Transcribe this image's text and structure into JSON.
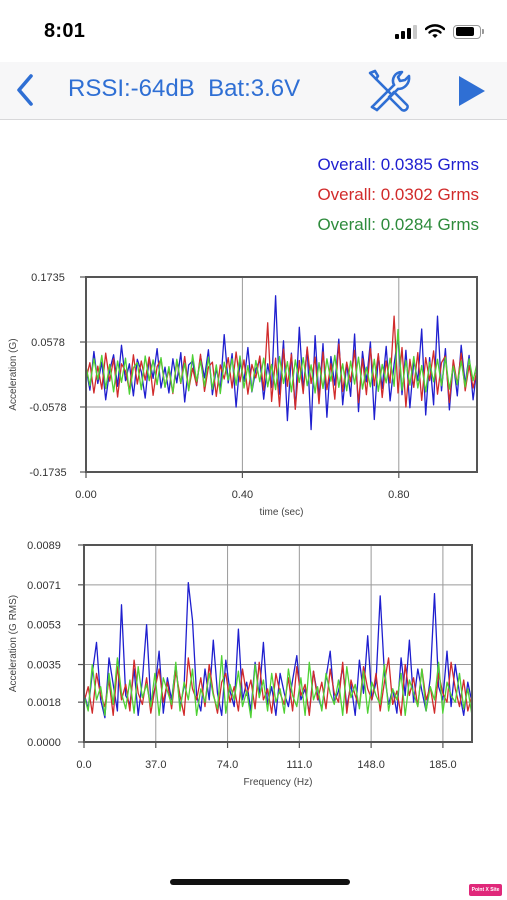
{
  "status_bar": {
    "time": "8:01",
    "signal_bars": 4,
    "signal_strength": 3,
    "battery_level": 0.8,
    "icons": [
      "signal-icon",
      "wifi-icon",
      "battery-icon"
    ]
  },
  "nav": {
    "title": "RSSI:-64dB  Bat:3.6V",
    "back_icon": "chevron-left-icon",
    "tools_icon": "wrench-screwdriver-icon",
    "play_icon": "play-icon",
    "accent_color": "#2f6fd4"
  },
  "overall": [
    {
      "text": "Overall: 0.0385 Grms",
      "color": "#1f1fcf"
    },
    {
      "text": "Overall: 0.0302 Grms",
      "color": "#d12b2b"
    },
    {
      "text": "Overall: 0.0284 Grms",
      "color": "#2e8b3c"
    }
  ],
  "chart_data": [
    {
      "type": "line",
      "xlabel": "time (sec)",
      "ylabel": "Acceleration (G)",
      "xlim": [
        0,
        1.0
      ],
      "ylim": [
        -0.1735,
        0.1735
      ],
      "x_ticks": [
        0.0,
        0.4,
        0.8
      ],
      "x_tick_labels": [
        "0.00",
        "0.40",
        "0.80"
      ],
      "y_ticks": [
        0.1735,
        0.0578,
        -0.0578,
        -0.1735
      ],
      "y_tick_labels": [
        "0.1735",
        "0.0578",
        "-0.0578",
        "-0.1735"
      ],
      "grid": true,
      "series": [
        {
          "color": "#1f1fcf",
          "values": [
            0.012,
            -0.028,
            0.041,
            -0.016,
            0.022,
            -0.045,
            0.008,
            0.035,
            -0.021,
            0.052,
            -0.011,
            0.019,
            -0.038,
            0.027,
            0.005,
            -0.042,
            0.031,
            -0.007,
            0.046,
            -0.024,
            0.013,
            -0.033,
            0.028,
            -0.015,
            0.039,
            -0.049,
            0.017,
            0.024,
            -0.02,
            0.033,
            -0.006,
            0.044,
            -0.036,
            0.011,
            -0.027,
            0.071,
            -0.015,
            0.037,
            -0.058,
            0.023,
            -0.012,
            0.048,
            -0.031,
            0.009,
            0.026,
            -0.044,
            0.019,
            -0.023,
            0.14,
            -0.035,
            0.06,
            -0.082,
            0.038,
            -0.061,
            0.084,
            -0.027,
            0.047,
            -0.098,
            0.069,
            -0.043,
            0.055,
            -0.076,
            0.032,
            -0.019,
            0.063,
            -0.054,
            0.02,
            -0.039,
            0.072,
            -0.066,
            0.041,
            -0.013,
            0.058,
            -0.08,
            0.035,
            -0.025,
            0.05,
            -0.047,
            0.018,
            0.067,
            -0.036,
            0.043,
            -0.059,
            0.024,
            -0.011,
            0.081,
            -0.072,
            0.03,
            -0.054,
            0.104,
            -0.029,
            0.046,
            -0.063,
            0.021,
            -0.038,
            0.052,
            -0.017,
            0.034,
            -0.045,
            0.012
          ]
        },
        {
          "color": "#d12b2b",
          "values": [
            -0.008,
            0.021,
            -0.033,
            0.015,
            -0.026,
            0.038,
            -0.012,
            0.028,
            -0.04,
            0.019,
            0.006,
            -0.029,
            0.035,
            -0.017,
            0.024,
            -0.01,
            0.031,
            -0.037,
            0.014,
            0.027,
            -0.022,
            0.009,
            -0.034,
            0.025,
            -0.016,
            0.032,
            -0.027,
            0.011,
            -0.019,
            0.036,
            -0.03,
            0.013,
            0.022,
            -0.039,
            0.017,
            -0.008,
            0.03,
            -0.024,
            0.04,
            -0.013,
            0.026,
            -0.035,
            0.018,
            -0.006,
            0.033,
            -0.028,
            0.092,
            -0.048,
            0.029,
            -0.057,
            0.045,
            -0.021,
            0.036,
            -0.062,
            0.025,
            -0.034,
            0.049,
            -0.016,
            0.031,
            -0.052,
            0.04,
            -0.027,
            0.019,
            -0.044,
            0.054,
            -0.03,
            0.022,
            -0.013,
            0.043,
            -0.05,
            0.028,
            -0.036,
            0.046,
            -0.02,
            0.037,
            -0.041,
            0.024,
            -0.015,
            0.104,
            -0.033,
            0.048,
            -0.058,
            0.027,
            -0.023,
            0.039,
            -0.046,
            0.03,
            -0.011,
            0.042,
            -0.035,
            0.021,
            0.033,
            -0.05,
            0.026,
            -0.018,
            0.038,
            -0.029,
            0.016,
            -0.024,
            0.007
          ]
        },
        {
          "color": "#4fd135",
          "values": [
            0.015,
            -0.02,
            0.028,
            -0.009,
            0.034,
            -0.025,
            0.018,
            -0.031,
            0.024,
            -0.014,
            0.029,
            -0.035,
            0.012,
            0.021,
            -0.027,
            0.033,
            -0.011,
            0.026,
            -0.018,
            0.03,
            -0.023,
            0.014,
            -0.032,
            0.027,
            -0.015,
            0.02,
            -0.029,
            0.035,
            -0.012,
            0.024,
            -0.021,
            0.031,
            -0.026,
            0.017,
            -0.034,
            0.022,
            -0.01,
            0.028,
            -0.019,
            0.033,
            -0.024,
            0.016,
            -0.03,
            0.025,
            -0.013,
            0.029,
            -0.022,
            0.018,
            -0.027,
            0.032,
            -0.016,
            0.023,
            -0.031,
            0.026,
            -0.014,
            0.03,
            -0.02,
            0.017,
            -0.033,
            0.021,
            -0.025,
            0.028,
            -0.012,
            0.034,
            -0.023,
            0.019,
            -0.029,
            0.024,
            -0.017,
            0.031,
            -0.026,
            0.013,
            -0.022,
            0.027,
            -0.03,
            0.018,
            -0.015,
            0.029,
            -0.021,
            0.08,
            -0.028,
            0.025,
            -0.019,
            0.032,
            -0.024,
            0.016,
            -0.031,
            0.022,
            -0.013,
            0.027,
            -0.02,
            0.03,
            -0.026,
            0.015,
            -0.018,
            0.024,
            -0.022,
            0.028,
            -0.011,
            0.02
          ]
        }
      ]
    },
    {
      "type": "line",
      "xlabel": "Frequency (Hz)",
      "ylabel": "Acceleration (G RMS)",
      "xlim": [
        0,
        200
      ],
      "ylim": [
        0,
        0.0089
      ],
      "x_ticks": [
        0,
        37,
        74,
        111,
        148,
        185
      ],
      "x_tick_labels": [
        "0.0",
        "37.0",
        "74.0",
        "111.0",
        "148.0",
        "185.0"
      ],
      "y_ticks": [
        0.0089,
        0.0071,
        0.0053,
        0.0035,
        0.0018,
        0.0
      ],
      "y_tick_labels": [
        "0.0089",
        "0.0071",
        "0.0053",
        "0.0035",
        "0.0018",
        "0.0000"
      ],
      "grid": true,
      "series": [
        {
          "color": "#1f1fcf",
          "values": [
            0.0022,
            0.0015,
            0.0031,
            0.0045,
            0.0019,
            0.0011,
            0.0038,
            0.0026,
            0.0014,
            0.0062,
            0.0021,
            0.0017,
            0.0033,
            0.0012,
            0.0028,
            0.0053,
            0.0018,
            0.0024,
            0.0041,
            0.0013,
            0.0029,
            0.0019,
            0.0035,
            0.0016,
            0.0025,
            0.0072,
            0.0055,
            0.0021,
            0.0014,
            0.0033,
            0.0019,
            0.0046,
            0.0022,
            0.0012,
            0.0037,
            0.0023,
            0.0016,
            0.0051,
            0.0019,
            0.0027,
            0.0014,
            0.0036,
            0.0021,
            0.0045,
            0.0017,
            0.0025,
            0.0012,
            0.0031,
            0.0022,
            0.0016,
            0.0028,
            0.0039,
            0.0019,
            0.0024,
            0.0013,
            0.0032,
            0.0021,
            0.0015,
            0.0029,
            0.0041,
            0.0018,
            0.0023,
            0.0034,
            0.0016,
            0.0026,
            0.0012,
            0.0037,
            0.0022,
            0.0048,
            0.0019,
            0.0027,
            0.0066,
            0.0031,
            0.0017,
            0.0024,
            0.0013,
            0.0038,
            0.0021,
            0.0046,
            0.0018,
            0.0033,
            0.0023,
            0.0014,
            0.0029,
            0.0067,
            0.0025,
            0.0019,
            0.0041,
            0.0016,
            0.0035,
            0.0022,
            0.0012,
            0.0027,
            0.0018
          ]
        },
        {
          "color": "#d12b2b",
          "values": [
            0.0018,
            0.0025,
            0.0013,
            0.0031,
            0.0021,
            0.0016,
            0.0028,
            0.0012,
            0.0034,
            0.0019,
            0.0026,
            0.0014,
            0.0037,
            0.0022,
            0.0017,
            0.0029,
            0.0013,
            0.0024,
            0.0033,
            0.0018,
            0.0027,
            0.0015,
            0.0032,
            0.0021,
            0.0012,
            0.0038,
            0.0024,
            0.0019,
            0.0029,
            0.0016,
            0.0035,
            0.0022,
            0.0013,
            0.0027,
            0.0031,
            0.0018,
            0.0025,
            0.0014,
            0.0033,
            0.0021,
            0.0028,
            0.0015,
            0.0036,
            0.0019,
            0.0024,
            0.0013,
            0.0031,
            0.0022,
            0.0017,
            0.0029,
            0.0014,
            0.0034,
            0.0021,
            0.0026,
            0.0012,
            0.0032,
            0.0019,
            0.0027,
            0.0015,
            0.0033,
            0.0022,
            0.0018,
            0.0036,
            0.0013,
            0.0028,
            0.0021,
            0.0016,
            0.0034,
            0.0024,
            0.0019,
            0.0031,
            0.0014,
            0.0027,
            0.0038,
            0.0017,
            0.0023,
            0.0012,
            0.0035,
            0.0021,
            0.0029,
            0.0016,
            0.0033,
            0.0019,
            0.0025,
            0.0013,
            0.0031,
            0.0022,
            0.0018,
            0.0036,
            0.0024,
            0.0016,
            0.0028,
            0.0014,
            0.0021
          ]
        },
        {
          "color": "#4fd135",
          "values": [
            0.0021,
            0.0014,
            0.0035,
            0.0019,
            0.0025,
            0.0012,
            0.0031,
            0.0017,
            0.0038,
            0.0022,
            0.0015,
            0.0028,
            0.0013,
            0.0034,
            0.002,
            0.0026,
            0.0016,
            0.0031,
            0.0012,
            0.0029,
            0.0023,
            0.0017,
            0.0036,
            0.0014,
            0.0027,
            0.0019,
            0.0033,
            0.0012,
            0.0024,
            0.0018,
            0.0031,
            0.0021,
            0.0015,
            0.0039,
            0.0013,
            0.0026,
            0.0019,
            0.0032,
            0.0016,
            0.0023,
            0.0011,
            0.0035,
            0.002,
            0.0028,
            0.0014,
            0.0031,
            0.0018,
            0.0024,
            0.0013,
            0.0033,
            0.0021,
            0.0016,
            0.0029,
            0.0012,
            0.0036,
            0.0019,
            0.0025,
            0.0014,
            0.0031,
            0.0022,
            0.0017,
            0.0028,
            0.0012,
            0.0034,
            0.002,
            0.0026,
            0.0015,
            0.0032,
            0.0013,
            0.0027,
            0.0021,
            0.0017,
            0.0035,
            0.0014,
            0.0024,
            0.0019,
            0.0031,
            0.0012,
            0.0028,
            0.0022,
            0.0016,
            0.0033,
            0.0014,
            0.0025,
            0.0019,
            0.0036,
            0.0013,
            0.0027,
            0.0021,
            0.0018,
            0.0031,
            0.0015,
            0.0024,
            0.0012
          ]
        }
      ]
    }
  ],
  "badge": "Point X Site"
}
